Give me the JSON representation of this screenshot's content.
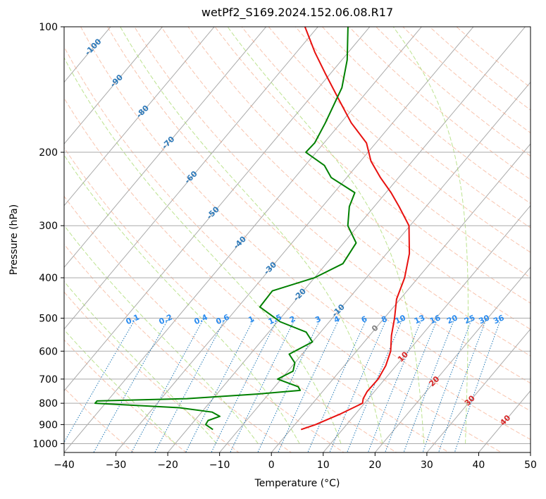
{
  "chart_data": {
    "type": "line",
    "subtype": "skew-t log-p diagram",
    "title": "wetPf2_S169.2024.152.06.08.R17",
    "xlabel": "Temperature (°C)",
    "ylabel": "Pressure (hPa)",
    "xlim": [
      -40,
      50
    ],
    "ylim": [
      1050,
      100
    ],
    "yscale": "log",
    "grid": true,
    "x_ticks": [
      -40,
      -30,
      -20,
      -10,
      0,
      10,
      20,
      30,
      40,
      50
    ],
    "y_ticks": [
      1000,
      900,
      800,
      700,
      600,
      500,
      400,
      300,
      200,
      100
    ],
    "series": [
      {
        "role": "temperature",
        "color": "#e8110f",
        "points": [
          [
            925,
            2.0
          ],
          [
            900,
            4.0
          ],
          [
            850,
            7.0
          ],
          [
            800,
            9.6
          ],
          [
            780,
            9.0
          ],
          [
            750,
            8.6
          ],
          [
            700,
            8.7
          ],
          [
            650,
            8.0
          ],
          [
            600,
            6.6
          ],
          [
            550,
            4.2
          ],
          [
            500,
            2.0
          ],
          [
            450,
            -0.7
          ],
          [
            400,
            -2.6
          ],
          [
            350,
            -5.6
          ],
          [
            300,
            -10.2
          ],
          [
            270,
            -15.2
          ],
          [
            250,
            -19.0
          ],
          [
            230,
            -23.5
          ],
          [
            210,
            -28.0
          ],
          [
            190,
            -31.8
          ],
          [
            170,
            -38.0
          ],
          [
            150,
            -44.0
          ],
          [
            130,
            -50.8
          ],
          [
            115,
            -56.5
          ],
          [
            100,
            -62.5
          ]
        ]
      },
      {
        "role": "dewpoint",
        "color": "#008000",
        "points": [
          [
            925,
            -15.0
          ],
          [
            900,
            -17.2
          ],
          [
            880,
            -17.4
          ],
          [
            860,
            -15.8
          ],
          [
            840,
            -18.0
          ],
          [
            820,
            -25.0
          ],
          [
            800,
            -42.0
          ],
          [
            790,
            -42.0
          ],
          [
            780,
            -25.0
          ],
          [
            760,
            -12.0
          ],
          [
            745,
            -4.5
          ],
          [
            730,
            -5.5
          ],
          [
            700,
            -10.7
          ],
          [
            670,
            -9.0
          ],
          [
            640,
            -10.0
          ],
          [
            610,
            -12.5
          ],
          [
            570,
            -10.0
          ],
          [
            540,
            -12.8
          ],
          [
            510,
            -19.5
          ],
          [
            470,
            -25.8
          ],
          [
            430,
            -26.0
          ],
          [
            400,
            -20.0
          ],
          [
            370,
            -16.8
          ],
          [
            330,
            -17.6
          ],
          [
            300,
            -22.0
          ],
          [
            270,
            -24.8
          ],
          [
            250,
            -26.0
          ],
          [
            230,
            -33.0
          ],
          [
            215,
            -36.3
          ],
          [
            200,
            -42.0
          ],
          [
            190,
            -41.8
          ],
          [
            170,
            -43.0
          ],
          [
            140,
            -45.5
          ],
          [
            120,
            -49.0
          ],
          [
            100,
            -54.2
          ]
        ]
      }
    ],
    "background_lines": {
      "isotherms_skewed_color": "#aaaaaa",
      "dry_adiabats_color": "#f4a582",
      "moist_adiabats_color": "#a6d96a",
      "mixing_ratio_color": "#1f77b4",
      "mixing_ratio_labels": [
        "0.1",
        "0.2",
        "0.4",
        "0.6",
        "1",
        "1.5",
        "2",
        "3",
        "4",
        "6",
        "8",
        "10",
        "13",
        "16",
        "20",
        "25",
        "30",
        "36"
      ],
      "isotherm_labels_blue": [
        "-100",
        "-90",
        "-80",
        "-70",
        "-60",
        "-50",
        "-40",
        "-30",
        "-20",
        "-10"
      ],
      "isotherm_label_zero": "0",
      "isotherm_labels_red": [
        "10",
        "20",
        "30",
        "40"
      ]
    }
  }
}
